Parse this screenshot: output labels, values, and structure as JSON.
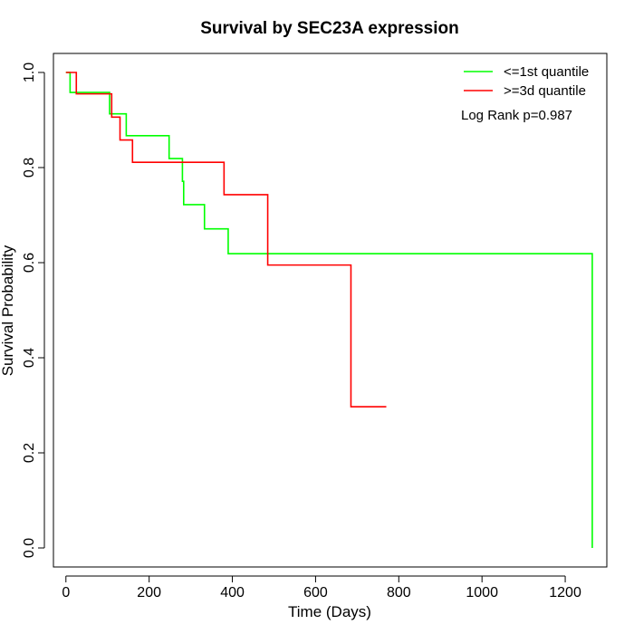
{
  "chart_data": {
    "type": "line",
    "title": "Survival by SEC23A expression",
    "xlabel": "Time (Days)",
    "ylabel": "Survival Probability",
    "xlim": [
      -30,
      1300
    ],
    "ylim": [
      -0.04,
      1.04
    ],
    "x_ticks": [
      0,
      200,
      400,
      600,
      800,
      1000,
      1200
    ],
    "y_ticks": [
      0.0,
      0.2,
      0.4,
      0.6,
      0.8,
      1.0
    ],
    "x_tick_labels": [
      "0",
      "200",
      "400",
      "600",
      "800",
      "1000",
      "1200"
    ],
    "y_tick_labels": [
      "0.0",
      "0.2",
      "0.4",
      "0.6",
      "0.8",
      "1.0"
    ],
    "grid": false,
    "legend_position": "top-right",
    "annotation": "Log Rank p=0.987",
    "series": [
      {
        "name": "<=1st quantile",
        "color": "#00ff00",
        "steps": [
          [
            0,
            1.0
          ],
          [
            10,
            0.958
          ],
          [
            105,
            0.913
          ],
          [
            145,
            0.867
          ],
          [
            248,
            0.819
          ],
          [
            280,
            0.771
          ],
          [
            283,
            0.722
          ],
          [
            333,
            0.671
          ],
          [
            390,
            0.619
          ],
          [
            1265,
            0.0
          ]
        ]
      },
      {
        "name": ">=3d quantile",
        "color": "#ff0000",
        "steps": [
          [
            0,
            1.0
          ],
          [
            25,
            0.955
          ],
          [
            110,
            0.906
          ],
          [
            130,
            0.858
          ],
          [
            160,
            0.811
          ],
          [
            380,
            0.743
          ],
          [
            485,
            0.595
          ],
          [
            685,
            0.297
          ],
          [
            770,
            0.297
          ]
        ]
      }
    ]
  }
}
